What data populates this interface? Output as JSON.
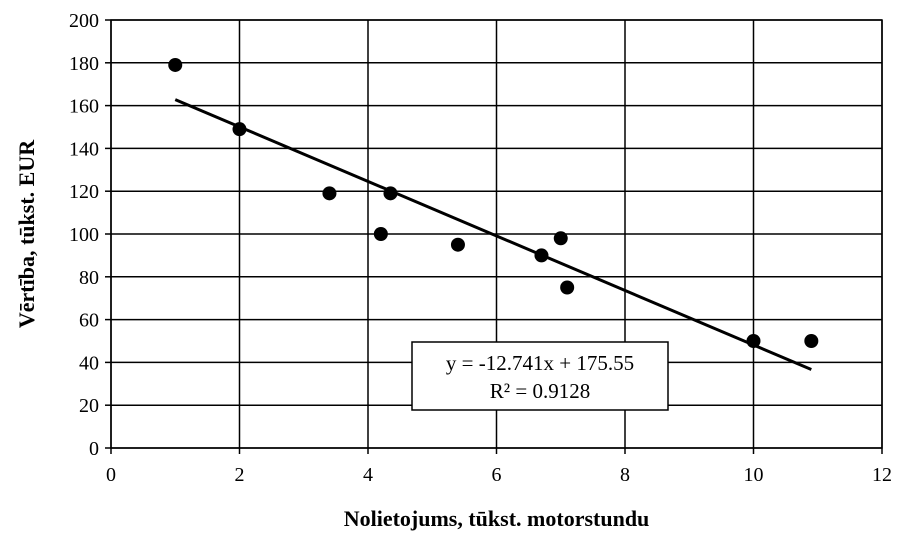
{
  "chart_data": {
    "type": "scatter",
    "xlabel": "Nolietojums, tūkst. motorstundu",
    "ylabel": "Vērtība, tūkst. EUR",
    "xlim": [
      0,
      12
    ],
    "ylim": [
      0,
      200
    ],
    "xticks": [
      "0",
      "2",
      "4",
      "6",
      "8",
      "10",
      "12"
    ],
    "yticks": [
      "0",
      "20",
      "40",
      "60",
      "80",
      "100",
      "120",
      "140",
      "160",
      "180",
      "200"
    ],
    "grid": true,
    "legend": "none",
    "points": [
      {
        "x": 1.0,
        "y": 179
      },
      {
        "x": 2.0,
        "y": 149
      },
      {
        "x": 3.4,
        "y": 119
      },
      {
        "x": 4.2,
        "y": 100
      },
      {
        "x": 4.35,
        "y": 119
      },
      {
        "x": 5.4,
        "y": 95
      },
      {
        "x": 6.7,
        "y": 90
      },
      {
        "x": 7.0,
        "y": 98
      },
      {
        "x": 7.1,
        "y": 75
      },
      {
        "x": 10.0,
        "y": 50
      },
      {
        "x": 10.9,
        "y": 50
      }
    ],
    "trendline": {
      "slope": -12.741,
      "intercept": 175.55,
      "x_range": [
        1.0,
        10.9
      ],
      "equation_text": "y = -12.741x + 175.55",
      "r2_text": "R² = 0.9128"
    },
    "colors": {
      "marker": "#000000",
      "line": "#000000",
      "grid": "#000000"
    }
  }
}
